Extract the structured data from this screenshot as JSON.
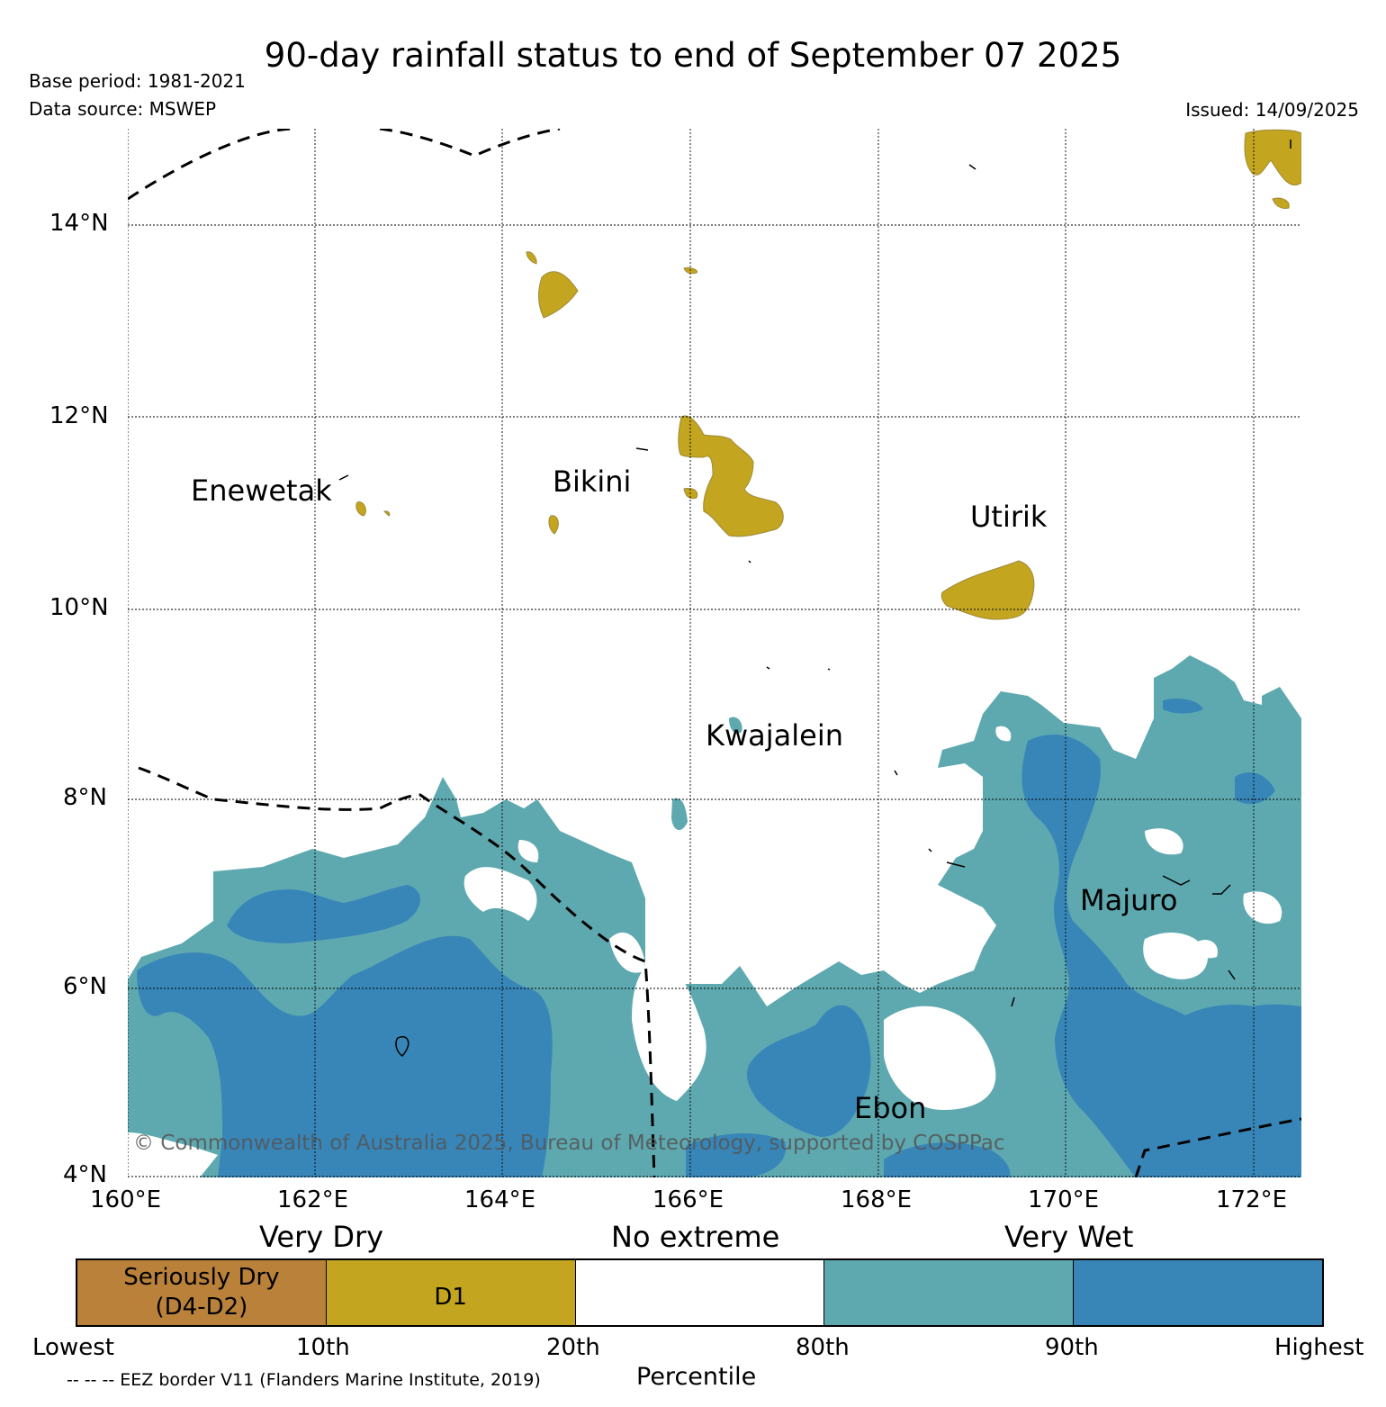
{
  "header": {
    "title": "90-day rainfall status to end of September 07 2025",
    "base_period": "Base period: 1981-2021",
    "data_source": "Data source: MSWEP",
    "issued": "Issued: 14/09/2025"
  },
  "map": {
    "lon_labels": [
      "160°E",
      "162°E",
      "164°E",
      "166°E",
      "168°E",
      "170°E",
      "172°E"
    ],
    "lat_labels": [
      "14°N",
      "12°N",
      "10°N",
      "8°N",
      "6°N",
      "4°N"
    ],
    "places": [
      "Enewetak",
      "Bikini",
      "Utirik",
      "Kwajalein",
      "Majuro",
      "Ebon"
    ],
    "copyright": "© Commonwealth of Australia 2025, Bureau of Meteorology, supported by COSPPac",
    "colors": {
      "d1": "#c4a51f",
      "wet80": "#5ea9b0",
      "wet90": "#3886b8",
      "seriously_dry": "#b9813a"
    }
  },
  "legend": {
    "categories": [
      "Very Dry",
      "No extreme",
      "Very Wet"
    ],
    "segments": [
      {
        "label_line1": "Seriously Dry",
        "label_line2": "(D4-D2)",
        "color": "#b9813a"
      },
      {
        "label_line1": "D1",
        "label_line2": "",
        "color": "#c4a51f"
      },
      {
        "label_line1": "",
        "label_line2": "",
        "color": "#ffffff"
      },
      {
        "label_line1": "",
        "label_line2": "",
        "color": "#5ea9b0"
      },
      {
        "label_line1": "",
        "label_line2": "",
        "color": "#3886b8"
      }
    ],
    "percentiles": [
      "Lowest",
      "10th",
      "20th",
      "80th",
      "90th",
      "Highest"
    ],
    "axis_title": "Percentile",
    "footnote": "-- -- -- EEZ border V11 (Flanders Marine Institute, 2019)"
  }
}
